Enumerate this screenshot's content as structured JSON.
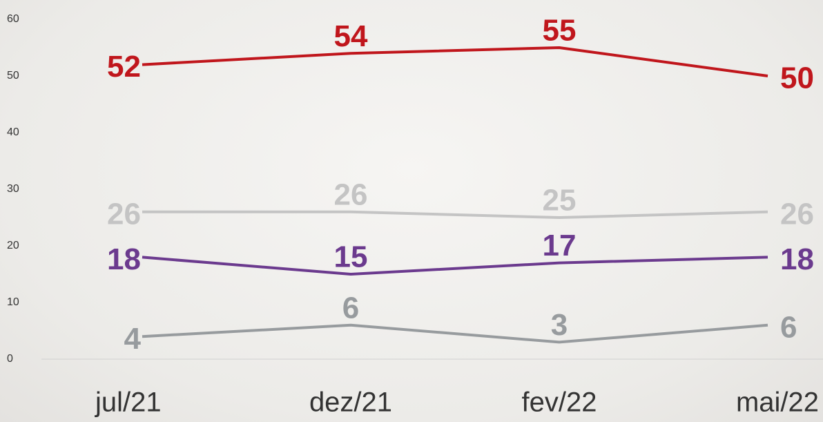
{
  "chart_data": {
    "type": "line",
    "categories": [
      "jul/21",
      "dez/21",
      "fev/22",
      "mai/22"
    ],
    "series": [
      {
        "color": "#c0161c",
        "values": [
          52,
          54,
          55,
          50
        ]
      },
      {
        "color": "#c4c4c4",
        "values": [
          26,
          26,
          25,
          26
        ]
      },
      {
        "color": "#6b3a8e",
        "values": [
          18,
          15,
          17,
          18
        ]
      },
      {
        "color": "#979b9e",
        "values": [
          4,
          6,
          3,
          6
        ]
      }
    ],
    "ylim": [
      0,
      60
    ],
    "yticks": [
      0,
      10,
      20,
      30,
      40,
      50,
      60
    ],
    "grid": false
  }
}
